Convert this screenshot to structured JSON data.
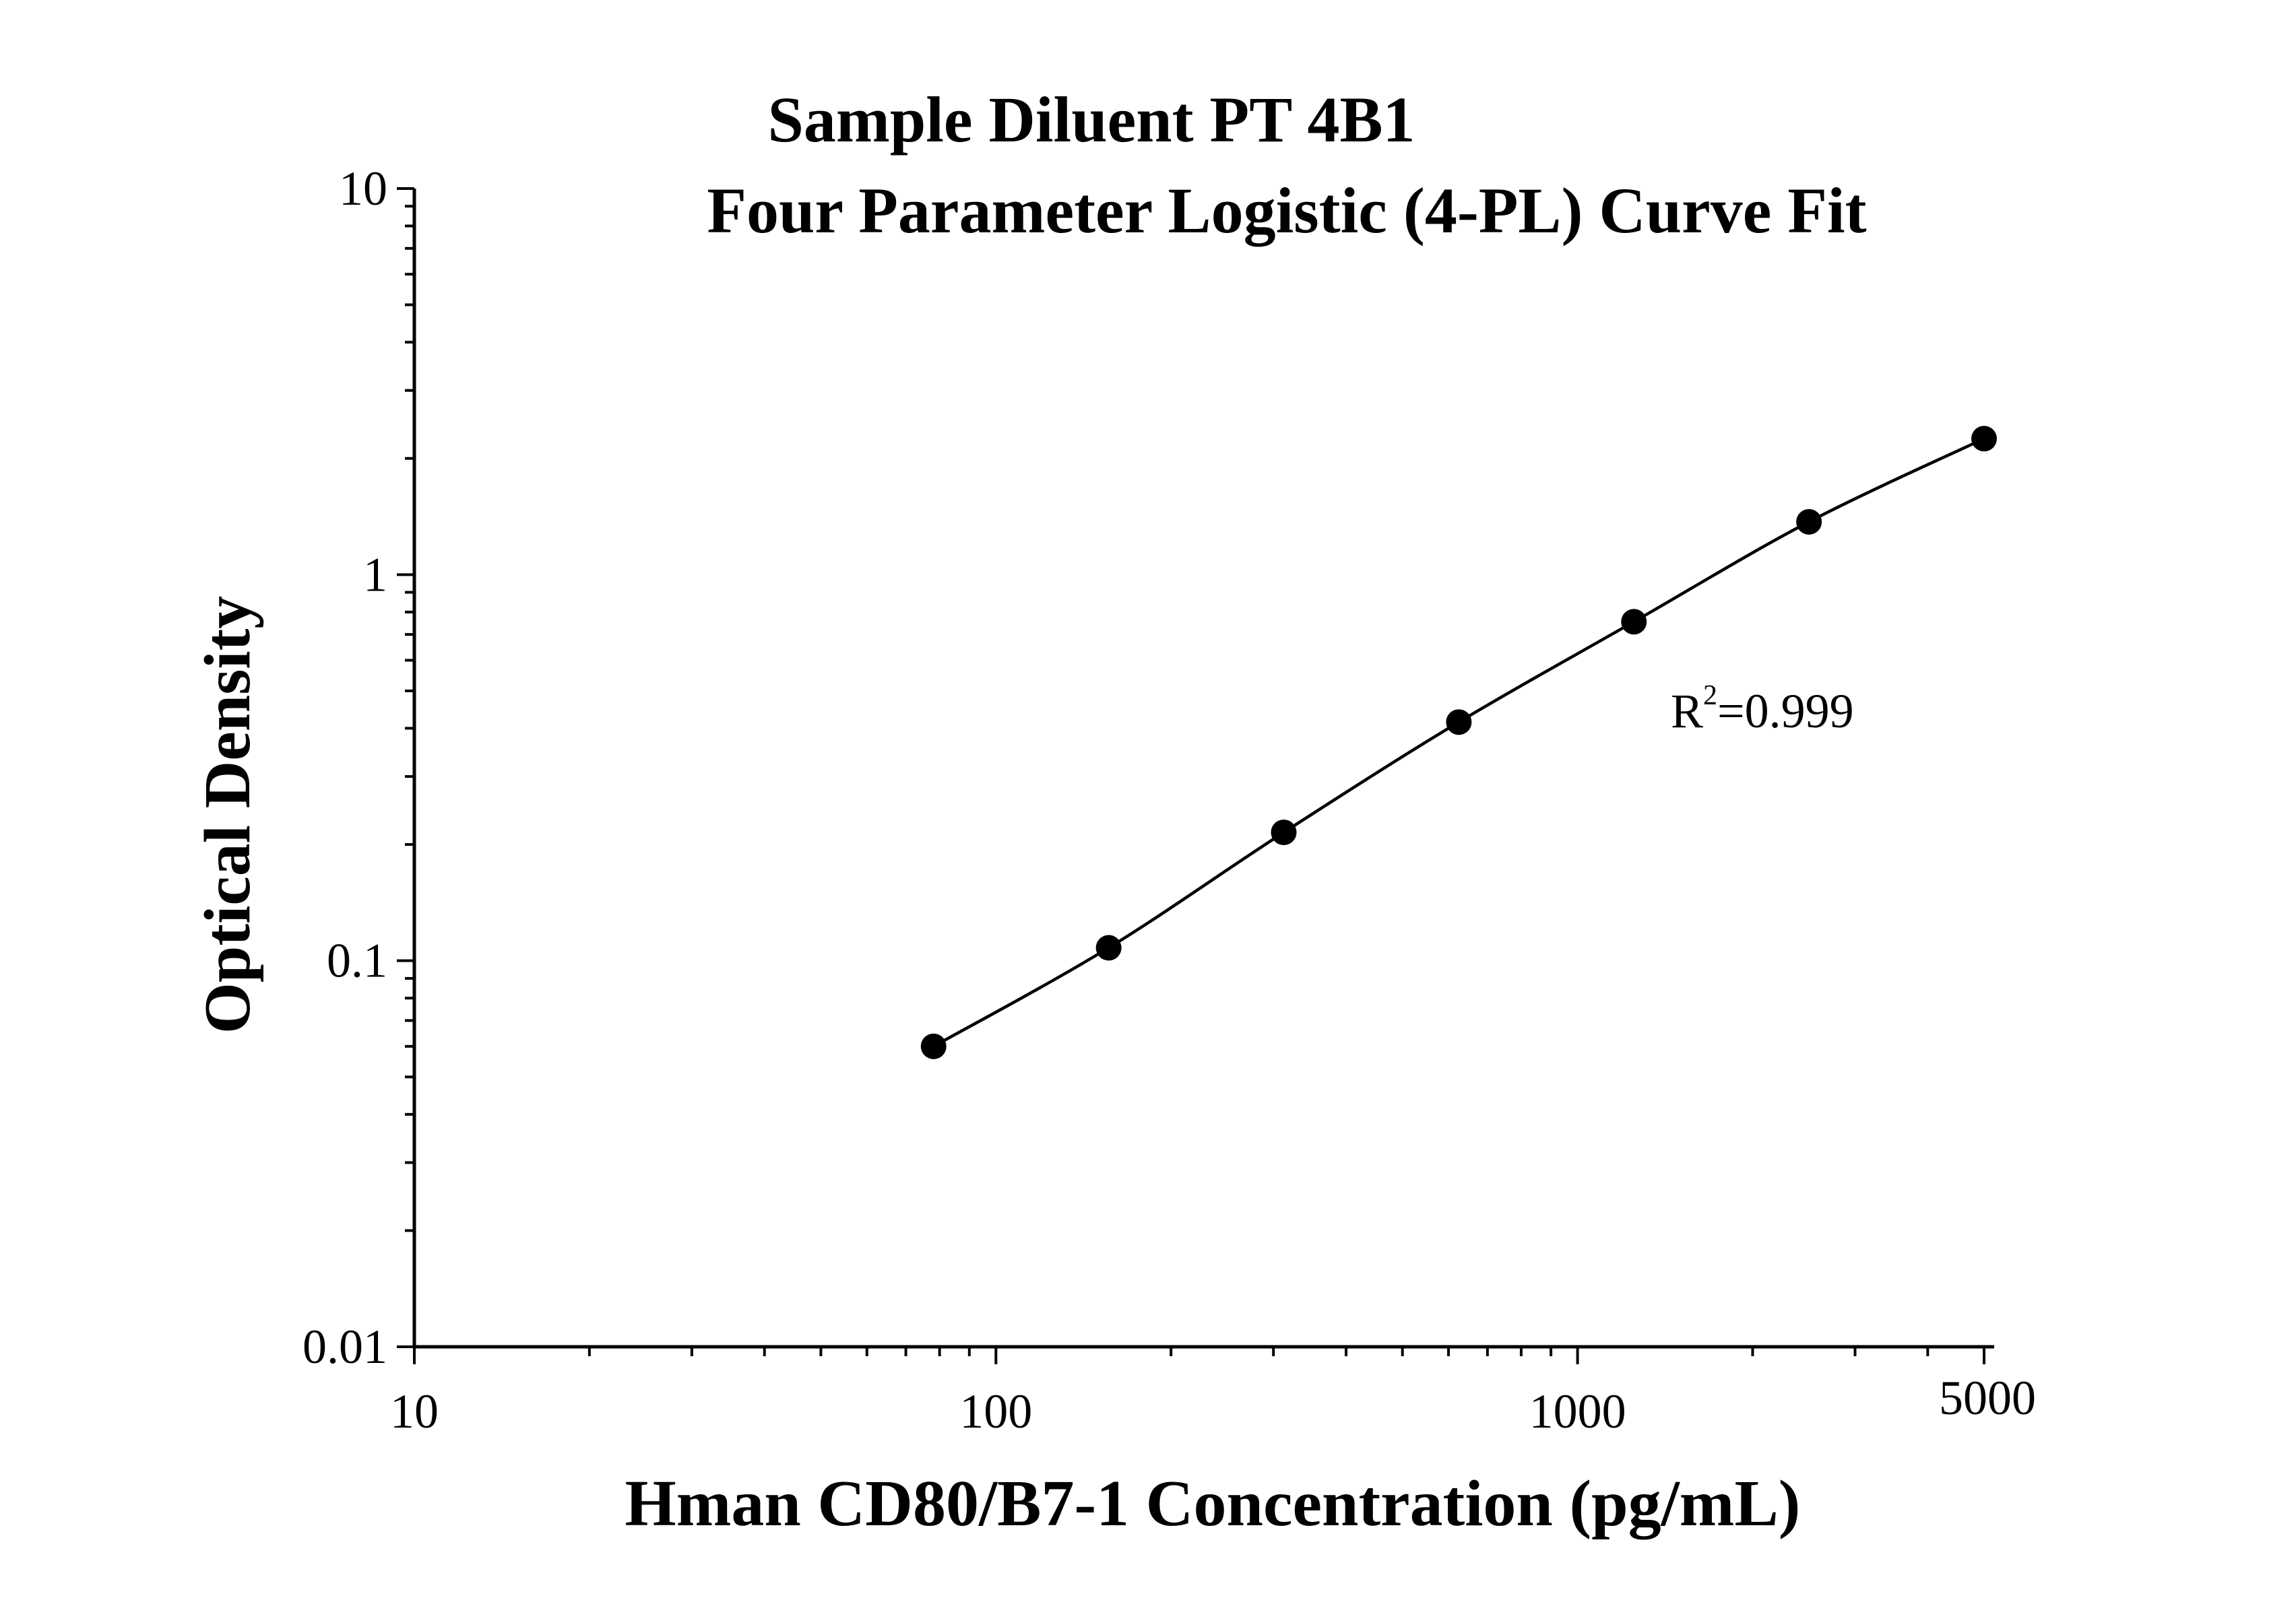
{
  "chart_data": {
    "type": "scatter",
    "title": "Sample Diluent PT 4B1",
    "subtitle": "Four Parameter Logistic (4-PL) Curve Fit",
    "xlabel": "Hman CD80/B7-1 Concentration (pg/mL)",
    "ylabel": "Optical Density",
    "x_scale": "log",
    "y_scale": "log",
    "xlim": [
      10,
      5000
    ],
    "ylim": [
      0.01,
      10
    ],
    "x_ticks": [
      "10",
      "100",
      "1000",
      "5000"
    ],
    "y_ticks": [
      "0.01",
      "0.1",
      "1",
      "10"
    ],
    "grid": false,
    "legend": "none",
    "series": [
      {
        "x": [
          78.125,
          156.25,
          312.5,
          625,
          1250,
          2500,
          5000
        ],
        "y": [
          0.06,
          0.108,
          0.215,
          0.415,
          0.755,
          1.37,
          2.25
        ]
      }
    ],
    "fit_curve": {
      "model": "4-PL",
      "x": [
        78.125,
        156.25,
        312.5,
        625,
        1250,
        2500,
        5000
      ],
      "y": [
        0.06,
        0.108,
        0.215,
        0.415,
        0.755,
        1.37,
        2.25
      ]
    },
    "annotation": {
      "base": "R",
      "sup": "2",
      "rest": "=0.999"
    },
    "colors": {
      "axis": "#000000",
      "marker": "#000000",
      "line": "#000000"
    }
  }
}
